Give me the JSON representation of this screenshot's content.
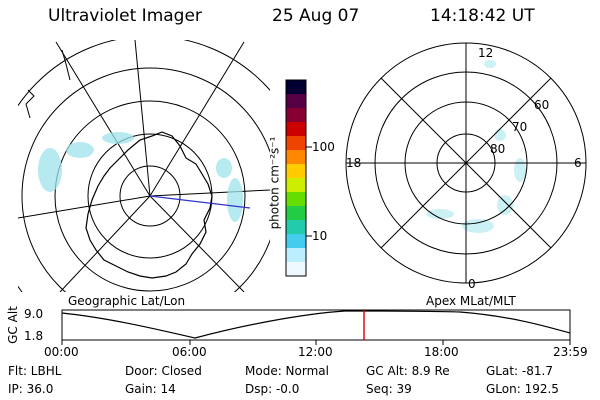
{
  "header": {
    "instrument": "Ultraviolet Imager",
    "date": "25 Aug 07",
    "time": "14:18:42 UT"
  },
  "left_panel": {
    "label": "Geographic Lat/Lon"
  },
  "right_panel": {
    "label": "Apex MLat/MLT",
    "mlt_labels": {
      "top": "12",
      "left": "18",
      "right": "6",
      "bottom": "0"
    },
    "lat_labels": [
      "60",
      "70",
      "80"
    ]
  },
  "colorbar": {
    "unit_label": "photon cm⁻²s⁻¹",
    "tick_labels": [
      "100",
      "10"
    ],
    "colors": [
      "#000033",
      "#550044",
      "#880033",
      "#cc0000",
      "#ee4400",
      "#ff8800",
      "#ffcc00",
      "#ccee00",
      "#66dd00",
      "#22cc44",
      "#22ccaa",
      "#44ccee",
      "#bbeeff",
      "#eef8ff"
    ]
  },
  "gc_alt_plot": {
    "ylabel": "GC Alt",
    "ytick_labels": [
      "9.0",
      "1.8"
    ],
    "xtick_labels": [
      "00:00",
      "06:00",
      "12:00",
      "18:00",
      "23:59"
    ],
    "current_time_marker_color": "#dd0000"
  },
  "status": {
    "flt": "Flt: LBHL",
    "ip": "IP: 36.0",
    "door": "Door: Closed",
    "gain": "Gain: 14",
    "mode": "Mode: Normal",
    "dsp": "Dsp:    -0.0",
    "gcalt": "GC Alt: 8.9 Re",
    "seq": "Seq: 39",
    "glat": "GLat: -81.7",
    "glon": "GLon: 192.5"
  }
}
